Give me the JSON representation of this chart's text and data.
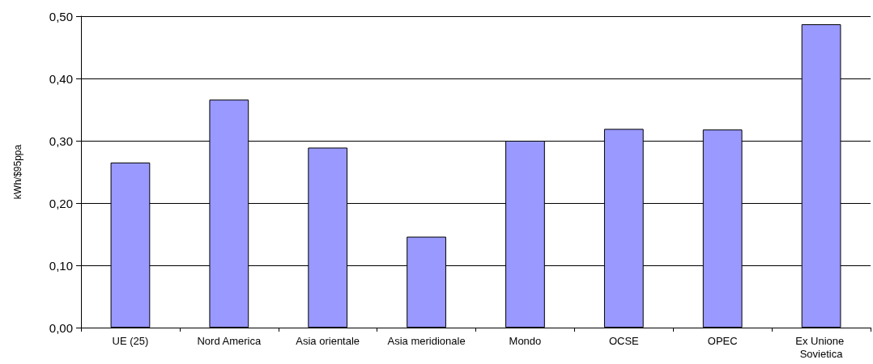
{
  "chart_data": {
    "type": "bar",
    "ylabel": "kWh/$95ppa",
    "categories": [
      "UE (25)",
      "Nord America",
      "Asia orientale",
      "Asia meridionale",
      "Mondo",
      "OCSE",
      "OPEC",
      "Ex Unione Sovietica"
    ],
    "values": [
      0.265,
      0.366,
      0.289,
      0.146,
      0.3,
      0.319,
      0.318,
      0.487
    ],
    "color": "#9999ff",
    "ylim": [
      0,
      0.5
    ],
    "yticks": [
      {
        "value": 0,
        "label": "0,00"
      },
      {
        "value": 0.1,
        "label": "0,10"
      },
      {
        "value": 0.2,
        "label": "0,20"
      },
      {
        "value": 0.3,
        "label": "0,30"
      },
      {
        "value": 0.4,
        "label": "0,40"
      },
      {
        "value": 0.5,
        "label": "0,50"
      }
    ],
    "grid": true
  }
}
